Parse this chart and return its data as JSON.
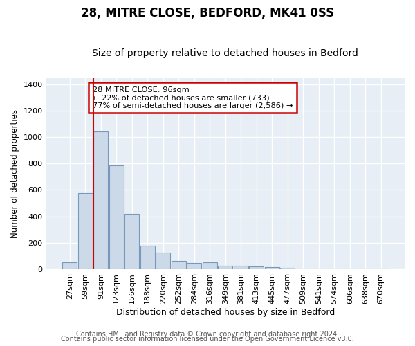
{
  "title1": "28, MITRE CLOSE, BEDFORD, MK41 0SS",
  "title2": "Size of property relative to detached houses in Bedford",
  "xlabel": "Distribution of detached houses by size in Bedford",
  "ylabel": "Number of detached properties",
  "categories": [
    "27sqm",
    "59sqm",
    "91sqm",
    "123sqm",
    "156sqm",
    "188sqm",
    "220sqm",
    "252sqm",
    "284sqm",
    "316sqm",
    "349sqm",
    "381sqm",
    "413sqm",
    "445sqm",
    "477sqm",
    "509sqm",
    "541sqm",
    "574sqm",
    "606sqm",
    "638sqm",
    "670sqm"
  ],
  "bar_heights": [
    50,
    575,
    1040,
    785,
    420,
    180,
    125,
    65,
    45,
    50,
    25,
    25,
    20,
    15,
    10,
    0,
    0,
    0,
    0,
    0,
    0
  ],
  "bar_color": "#ccd9e8",
  "bar_edge_color": "#7799bb",
  "vline_color": "#cc0000",
  "annotation_text": "28 MITRE CLOSE: 96sqm\n← 22% of detached houses are smaller (733)\n77% of semi-detached houses are larger (2,586) →",
  "annotation_box_color": "#ffffff",
  "annotation_border_color": "#cc0000",
  "ylim": [
    0,
    1450
  ],
  "yticks": [
    0,
    200,
    400,
    600,
    800,
    1000,
    1200,
    1400
  ],
  "bg_color": "#e8eef5",
  "grid_color": "#ffffff",
  "fig_color": "#ffffff",
  "footer1": "Contains HM Land Registry data © Crown copyright and database right 2024.",
  "footer2": "Contains public sector information licensed under the Open Government Licence v3.0.",
  "title1_fontsize": 12,
  "title2_fontsize": 10,
  "xlabel_fontsize": 9,
  "ylabel_fontsize": 8.5,
  "tick_fontsize": 8,
  "footer_fontsize": 7
}
